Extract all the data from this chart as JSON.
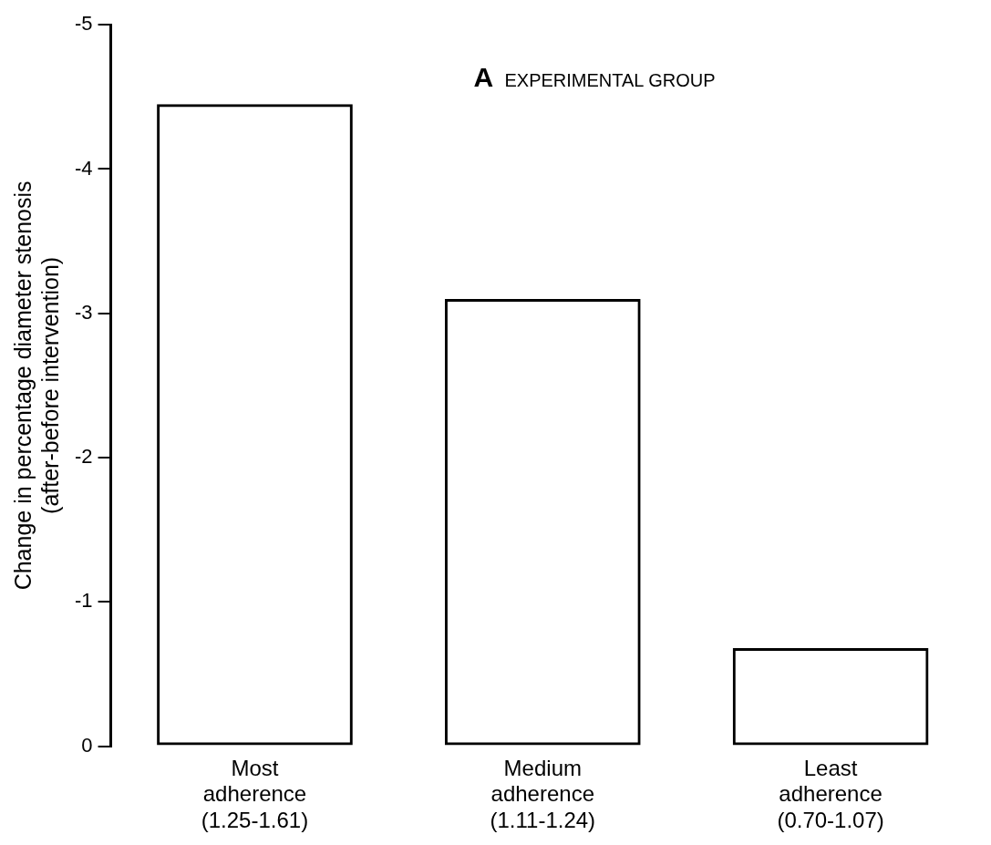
{
  "chart_data": {
    "type": "bar",
    "title": "A EXPERIMENTAL GROUP",
    "ylabel": "Change in percentage diameter stenosis\n(after-before intervention)",
    "categories": [
      "Most\nadherence\n(1.25-1.61)",
      "Medium\nadherence\n(1.11-1.24)",
      "Least\nadherence\n(0.70-1.07)"
    ],
    "values": [
      -4.45,
      -3.1,
      -0.68
    ],
    "color": "#000000",
    "ylim": [
      0,
      -5
    ],
    "yticks": [
      0,
      -1,
      -2,
      -3,
      -4,
      -5
    ],
    "grid": false,
    "legend": false
  }
}
